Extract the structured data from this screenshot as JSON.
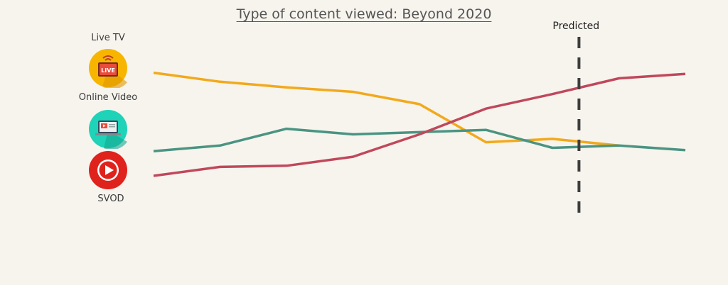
{
  "chart_data": {
    "type": "line",
    "title": "Type of content viewed: Beyond 2020",
    "xlabel": "",
    "ylabel": "",
    "x": [
      1,
      2,
      3,
      4,
      5,
      6,
      7,
      8,
      9
    ],
    "ylim": [
      0,
      100
    ],
    "grid": false,
    "series": [
      {
        "name": "Live TV",
        "color": "#f2a91b",
        "values": [
          92,
          84,
          79,
          75,
          64,
          30,
          33,
          27,
          null
        ]
      },
      {
        "name": "Online Video",
        "color": "#4a9482",
        "values": [
          22,
          27,
          42,
          37,
          39,
          41,
          25,
          27,
          23
        ]
      },
      {
        "name": "SVOD",
        "color": "#c0485b",
        "values": [
          0,
          8,
          9,
          17,
          37,
          60,
          73,
          87,
          91
        ]
      }
    ],
    "predicted_marker": {
      "x": 7.4,
      "label": "Predicted",
      "color": "#3d3d3d"
    }
  },
  "legend": {
    "live_tv": {
      "label": "Live TV",
      "icon": "live-tv-icon",
      "color": "#f7b500",
      "badge_text": "LIVE"
    },
    "online_video": {
      "label": "Online Video",
      "icon": "laptop-video-icon",
      "color": "#1ed3b7"
    },
    "svod": {
      "label": "SVOD",
      "icon": "play-button-icon",
      "color": "#e0221c"
    }
  }
}
